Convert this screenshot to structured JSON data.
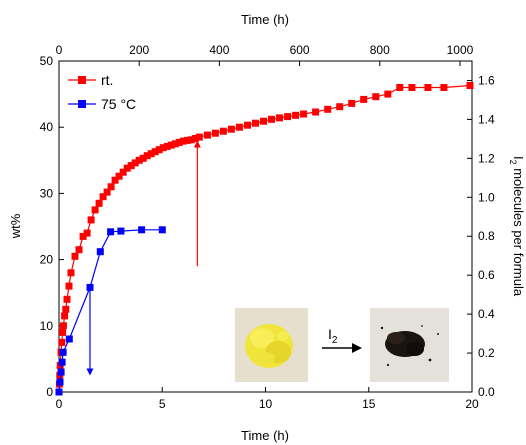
{
  "chart_data": {
    "type": "line",
    "x_bottom": {
      "label": "Time (h)",
      "range": [
        0,
        20
      ],
      "ticks": [
        "0",
        "5",
        "10",
        "15",
        "20"
      ]
    },
    "x_top": {
      "label": "Time (h)",
      "range": [
        0,
        1030
      ],
      "ticks": [
        "0",
        "200",
        "400",
        "600",
        "800",
        "1000"
      ]
    },
    "y_left": {
      "label": "wt%",
      "range": [
        0,
        50
      ],
      "ticks": [
        "0",
        "10",
        "20",
        "30",
        "40",
        "50"
      ]
    },
    "y_right": {
      "label_main": "I",
      "label_sub": "2",
      "label_rest": " molecules per formula",
      "range": [
        0,
        1.7
      ],
      "ticks": [
        "0.0",
        "0.2",
        "0.4",
        "0.6",
        "0.8",
        "1.0",
        "1.2",
        "1.4",
        "1.6"
      ]
    },
    "series": [
      {
        "name": "rt.",
        "color": "#ff0000",
        "marker": "square",
        "x_axis": "top",
        "x": [
          0,
          1,
          2,
          3,
          5,
          7,
          9,
          11,
          14,
          17,
          20,
          25,
          30,
          40,
          50,
          60,
          70,
          80,
          90,
          100,
          110,
          120,
          130,
          140,
          150,
          160,
          170,
          180,
          190,
          200,
          210,
          220,
          230,
          240,
          250,
          260,
          270,
          280,
          290,
          300,
          310,
          320,
          330,
          340,
          350,
          370,
          390,
          410,
          430,
          450,
          470,
          490,
          510,
          530,
          550,
          570,
          590,
          610,
          640,
          670,
          700,
          730,
          760,
          790,
          820,
          850,
          880,
          920,
          960,
          1025
        ],
        "values": [
          0,
          1.2,
          2.5,
          4,
          6,
          7.5,
          9,
          10,
          11.5,
          12.5,
          14,
          16,
          18,
          20.5,
          21.5,
          23.5,
          24,
          26,
          27.5,
          28.5,
          29.5,
          30.2,
          31,
          32,
          32.6,
          33.2,
          33.8,
          34.2,
          34.6,
          35,
          35.3,
          35.7,
          36,
          36.3,
          36.6,
          36.9,
          37.1,
          37.3,
          37.5,
          37.7,
          37.9,
          38,
          38.1,
          38.3,
          38.5,
          38.8,
          39.1,
          39.4,
          39.7,
          40,
          40.3,
          40.6,
          40.9,
          41.2,
          41.4,
          41.6,
          41.8,
          42,
          42.3,
          42.7,
          43.1,
          43.6,
          44.2,
          44.6,
          45,
          46,
          46,
          46,
          46,
          46.3
        ]
      },
      {
        "name": "75 °C",
        "color": "#0000ff",
        "marker": "square",
        "x_axis": "bottom",
        "x": [
          0,
          0.05,
          0.1,
          0.15,
          0.2,
          0.5,
          1.5,
          2,
          2.5,
          3,
          4,
          5
        ],
        "values": [
          0,
          1.5,
          3,
          4.5,
          6,
          8,
          15.8,
          21.2,
          24.2,
          24.3,
          24.5,
          24.5
        ]
      }
    ],
    "annotations": [
      {
        "type": "arrow",
        "color": "#ff0000",
        "direction": "up",
        "x_axis": "top",
        "x": 345,
        "y_from": 19,
        "y_to": 38
      },
      {
        "type": "arrow",
        "color": "#0000ff",
        "direction": "down",
        "x_axis": "bottom",
        "x": 1.5,
        "y_from": 16,
        "y_to": 2.5
      }
    ],
    "inset": {
      "arrow_label_main": "I",
      "arrow_label_sub": "2"
    },
    "legend_position": "top-left",
    "grid": false
  }
}
